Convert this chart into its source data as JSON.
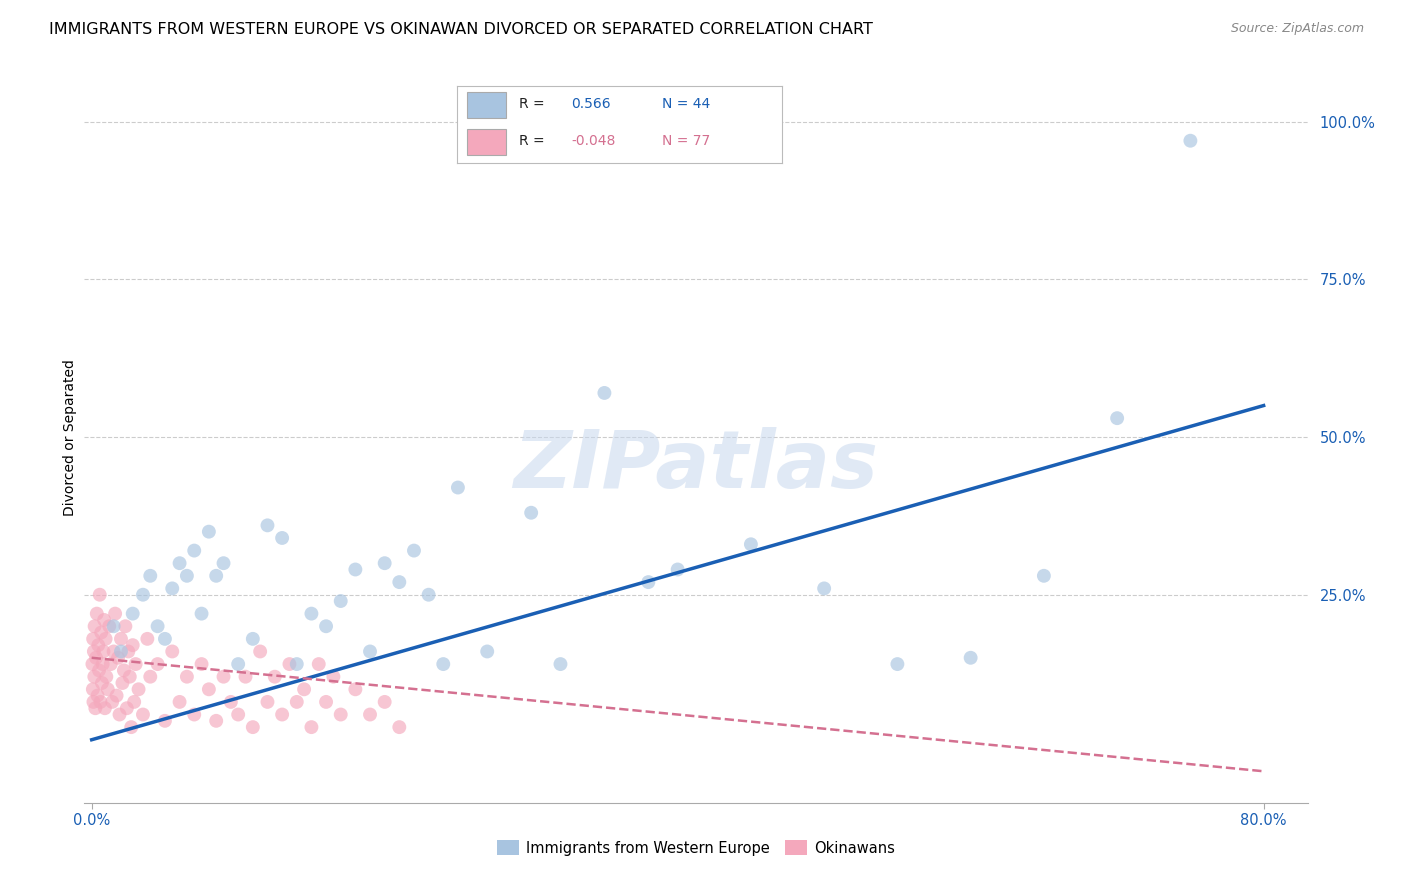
{
  "title": "IMMIGRANTS FROM WESTERN EUROPE VS OKINAWAN DIVORCED OR SEPARATED CORRELATION CHART",
  "source": "Source: ZipAtlas.com",
  "ylabel": "Divorced or Separated",
  "y_tick_labels": [
    "25.0%",
    "50.0%",
    "75.0%",
    "100.0%"
  ],
  "y_tick_positions": [
    25.0,
    50.0,
    75.0,
    100.0
  ],
  "legend_labels": [
    "Immigrants from Western Europe",
    "Okinawans"
  ],
  "blue_color": "#a8c4e0",
  "pink_color": "#f4a8bc",
  "blue_line_color": "#1a5fb4",
  "pink_line_color": "#d47090",
  "watermark": "ZIPatlas",
  "blue_scatter_x": [
    1.5,
    2.0,
    2.8,
    3.5,
    4.0,
    4.5,
    5.0,
    5.5,
    6.0,
    6.5,
    7.0,
    7.5,
    8.0,
    8.5,
    9.0,
    10.0,
    11.0,
    12.0,
    13.0,
    14.0,
    15.0,
    16.0,
    17.0,
    18.0,
    19.0,
    20.0,
    21.0,
    22.0,
    23.0,
    24.0,
    25.0,
    27.0,
    30.0,
    32.0,
    35.0,
    38.0,
    40.0,
    45.0,
    50.0,
    55.0,
    60.0,
    65.0,
    70.0,
    75.0
  ],
  "blue_scatter_y": [
    20.0,
    16.0,
    22.0,
    25.0,
    28.0,
    20.0,
    18.0,
    26.0,
    30.0,
    28.0,
    32.0,
    22.0,
    35.0,
    28.0,
    30.0,
    14.0,
    18.0,
    36.0,
    34.0,
    14.0,
    22.0,
    20.0,
    24.0,
    29.0,
    16.0,
    30.0,
    27.0,
    32.0,
    25.0,
    14.0,
    42.0,
    16.0,
    38.0,
    14.0,
    57.0,
    27.0,
    29.0,
    33.0,
    26.0,
    14.0,
    15.0,
    28.0,
    53.0,
    97.0
  ],
  "pink_scatter_x": [
    0.05,
    0.08,
    0.1,
    0.12,
    0.15,
    0.18,
    0.2,
    0.25,
    0.3,
    0.35,
    0.4,
    0.45,
    0.5,
    0.55,
    0.6,
    0.65,
    0.7,
    0.75,
    0.8,
    0.85,
    0.9,
    0.95,
    1.0,
    1.1,
    1.2,
    1.3,
    1.4,
    1.5,
    1.6,
    1.7,
    1.8,
    1.9,
    2.0,
    2.1,
    2.2,
    2.3,
    2.4,
    2.5,
    2.6,
    2.7,
    2.8,
    2.9,
    3.0,
    3.2,
    3.5,
    3.8,
    4.0,
    4.5,
    5.0,
    5.5,
    6.0,
    6.5,
    7.0,
    7.5,
    8.0,
    8.5,
    9.0,
    9.5,
    10.0,
    10.5,
    11.0,
    11.5,
    12.0,
    12.5,
    13.0,
    13.5,
    14.0,
    14.5,
    15.0,
    15.5,
    16.0,
    16.5,
    17.0,
    18.0,
    19.0,
    20.0,
    21.0
  ],
  "pink_scatter_y": [
    14.0,
    10.0,
    18.0,
    8.0,
    16.0,
    12.0,
    20.0,
    7.0,
    15.0,
    22.0,
    9.0,
    17.0,
    13.0,
    25.0,
    8.0,
    19.0,
    11.0,
    14.0,
    16.0,
    21.0,
    7.0,
    18.0,
    12.0,
    10.0,
    20.0,
    14.0,
    8.0,
    16.0,
    22.0,
    9.0,
    15.0,
    6.0,
    18.0,
    11.0,
    13.0,
    20.0,
    7.0,
    16.0,
    12.0,
    4.0,
    17.0,
    8.0,
    14.0,
    10.0,
    6.0,
    18.0,
    12.0,
    14.0,
    5.0,
    16.0,
    8.0,
    12.0,
    6.0,
    14.0,
    10.0,
    5.0,
    12.0,
    8.0,
    6.0,
    12.0,
    4.0,
    16.0,
    8.0,
    12.0,
    6.0,
    14.0,
    8.0,
    10.0,
    4.0,
    14.0,
    8.0,
    12.0,
    6.0,
    10.0,
    6.0,
    8.0,
    4.0
  ],
  "blue_line_x": [
    0.0,
    80.0
  ],
  "blue_line_y": [
    2.0,
    55.0
  ],
  "pink_line_x": [
    0.0,
    80.0
  ],
  "pink_line_y": [
    15.0,
    -3.0
  ],
  "xlim": [
    -0.5,
    83.0
  ],
  "ylim": [
    -8.0,
    108.0
  ],
  "marker_size": 100,
  "title_fontsize": 11.5,
  "axis_label_fontsize": 10,
  "tick_fontsize": 10.5
}
